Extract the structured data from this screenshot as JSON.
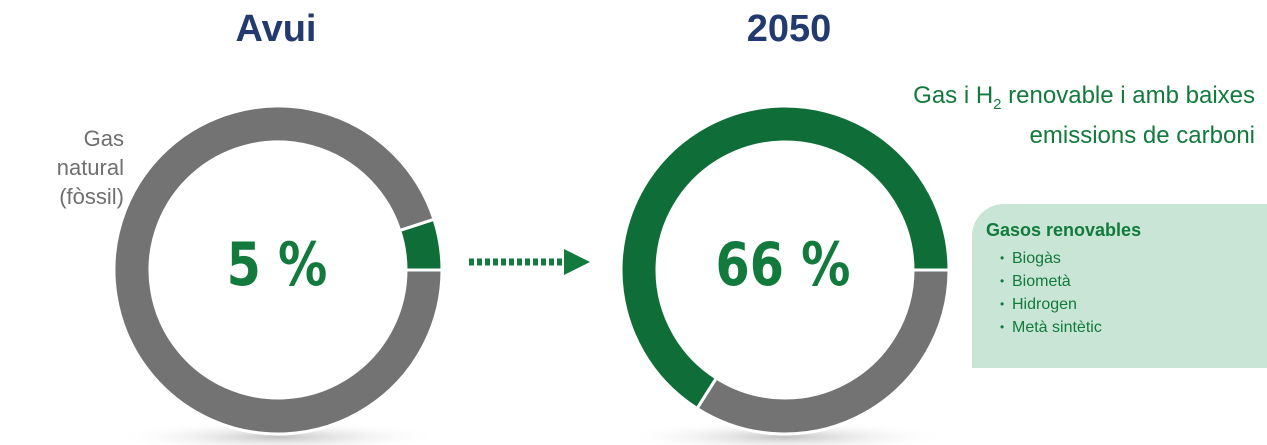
{
  "colors": {
    "fossil": "#737373",
    "renewable": "#0f6e37",
    "title": "#223a70",
    "arrow": "#127a3c"
  },
  "titles": {
    "today": "Avui",
    "future": "2050"
  },
  "labels": {
    "fossil": [
      "Gas",
      "natural",
      "(fòssil)"
    ],
    "renewable_prefix": "Gas i H",
    "renewable_sub": "2",
    "renewable_suffix": " renovable i amb baixes",
    "renewable_line2": "emissions de carboni"
  },
  "legend": {
    "title": "Gasos renovables",
    "items": [
      "Biogàs",
      "Biometà",
      "Hidrogen",
      "Metà sintètic"
    ]
  },
  "chart_data": [
    {
      "type": "pie",
      "title": "Avui",
      "center_label": "5 %",
      "slices": [
        {
          "label": "Gas i H2 renovable i amb baixes emissions de carboni",
          "value": 5
        },
        {
          "label": "Gas natural (fòssil)",
          "value": 95
        }
      ]
    },
    {
      "type": "pie",
      "title": "2050",
      "center_label": "66 %",
      "slices": [
        {
          "label": "Gas i H2 renovable i amb baixes emissions de carboni",
          "value": 66
        },
        {
          "label": "Gas natural (fòssil)",
          "value": 34
        }
      ]
    }
  ]
}
